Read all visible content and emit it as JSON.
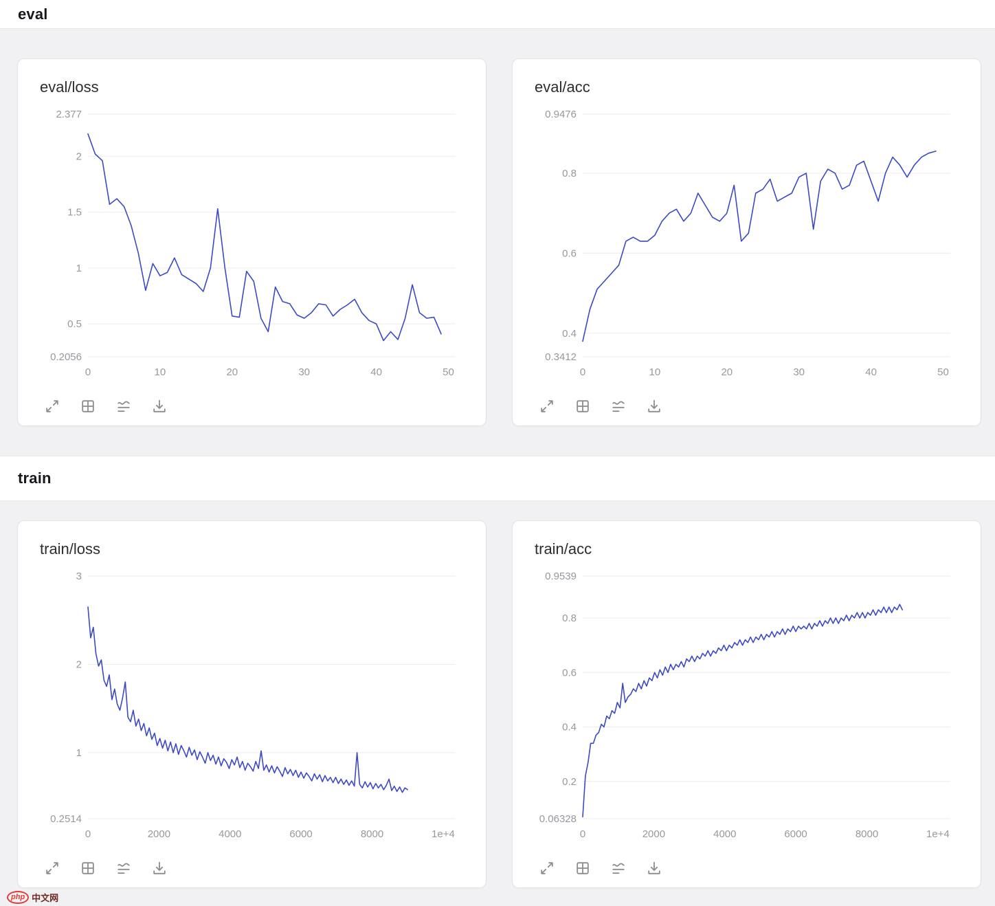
{
  "style": {
    "line_color": "#3b49c4"
  },
  "sections": [
    {
      "title": "eval"
    },
    {
      "title": "train"
    }
  ],
  "toolbar": {
    "icons": [
      "fullscreen-icon",
      "grid-icon",
      "smoothing-icon",
      "download-icon"
    ]
  },
  "watermark": {
    "logo": "php",
    "text": "中文网"
  },
  "chart_data": [
    {
      "type": "line",
      "title": "eval/loss",
      "xlim": [
        0,
        51
      ],
      "ylim": [
        0.2056,
        2.377
      ],
      "yticks": [
        {
          "v": 2.377,
          "label": "2.377"
        },
        {
          "v": 2,
          "label": "2"
        },
        {
          "v": 1.5,
          "label": "1.5"
        },
        {
          "v": 1,
          "label": "1"
        },
        {
          "v": 0.5,
          "label": "0.5"
        },
        {
          "v": 0.2056,
          "label": "0.2056"
        }
      ],
      "xticks": [
        {
          "v": 0,
          "label": "0"
        },
        {
          "v": 10,
          "label": "10"
        },
        {
          "v": 20,
          "label": "20"
        },
        {
          "v": 30,
          "label": "30"
        },
        {
          "v": 40,
          "label": "40"
        },
        {
          "v": 50,
          "label": "50"
        }
      ],
      "x": [
        0,
        1,
        2,
        3,
        4,
        5,
        6,
        7,
        8,
        9,
        10,
        11,
        12,
        13,
        14,
        15,
        16,
        17,
        18,
        19,
        20,
        21,
        22,
        23,
        24,
        25,
        26,
        27,
        28,
        29,
        30,
        31,
        32,
        33,
        34,
        35,
        36,
        37,
        38,
        39,
        40,
        41,
        42,
        43,
        44,
        45,
        46,
        47,
        48,
        49
      ],
      "y": [
        2.2,
        2.02,
        1.96,
        1.57,
        1.62,
        1.55,
        1.38,
        1.13,
        0.8,
        1.04,
        0.93,
        0.96,
        1.09,
        0.94,
        0.9,
        0.86,
        0.79,
        1.0,
        1.53,
        1.0,
        0.57,
        0.56,
        0.97,
        0.88,
        0.55,
        0.43,
        0.83,
        0.7,
        0.68,
        0.58,
        0.55,
        0.6,
        0.68,
        0.67,
        0.57,
        0.63,
        0.67,
        0.72,
        0.6,
        0.53,
        0.5,
        0.35,
        0.43,
        0.36,
        0.55,
        0.85,
        0.6,
        0.55,
        0.56,
        0.41
      ]
    },
    {
      "type": "line",
      "title": "eval/acc",
      "xlim": [
        0,
        51
      ],
      "ylim": [
        0.3412,
        0.9476
      ],
      "yticks": [
        {
          "v": 0.9476,
          "label": "0.9476"
        },
        {
          "v": 0.8,
          "label": "0.8"
        },
        {
          "v": 0.6,
          "label": "0.6"
        },
        {
          "v": 0.4,
          "label": "0.4"
        },
        {
          "v": 0.3412,
          "label": "0.3412"
        }
      ],
      "xticks": [
        {
          "v": 0,
          "label": "0"
        },
        {
          "v": 10,
          "label": "10"
        },
        {
          "v": 20,
          "label": "20"
        },
        {
          "v": 30,
          "label": "30"
        },
        {
          "v": 40,
          "label": "40"
        },
        {
          "v": 50,
          "label": "50"
        }
      ],
      "x": [
        0,
        1,
        2,
        3,
        4,
        5,
        6,
        7,
        8,
        9,
        10,
        11,
        12,
        13,
        14,
        15,
        16,
        17,
        18,
        19,
        20,
        21,
        22,
        23,
        24,
        25,
        26,
        27,
        28,
        29,
        30,
        31,
        32,
        33,
        34,
        35,
        36,
        37,
        38,
        39,
        40,
        41,
        42,
        43,
        44,
        45,
        46,
        47,
        48,
        49
      ],
      "y": [
        0.38,
        0.46,
        0.51,
        0.53,
        0.55,
        0.57,
        0.63,
        0.64,
        0.63,
        0.63,
        0.645,
        0.68,
        0.7,
        0.71,
        0.68,
        0.7,
        0.75,
        0.72,
        0.69,
        0.68,
        0.7,
        0.77,
        0.63,
        0.65,
        0.75,
        0.76,
        0.785,
        0.73,
        0.74,
        0.75,
        0.79,
        0.8,
        0.66,
        0.78,
        0.81,
        0.8,
        0.76,
        0.77,
        0.82,
        0.83,
        0.78,
        0.73,
        0.8,
        0.84,
        0.82,
        0.79,
        0.82,
        0.84,
        0.85,
        0.855
      ]
    },
    {
      "type": "line",
      "title": "train/loss",
      "xlim": [
        0,
        10350
      ],
      "ylim": [
        0.2514,
        3.0
      ],
      "yticks": [
        {
          "v": 3,
          "label": "3"
        },
        {
          "v": 2,
          "label": "2"
        },
        {
          "v": 1,
          "label": "1"
        },
        {
          "v": 0.2514,
          "label": "0.2514"
        }
      ],
      "xticks": [
        {
          "v": 0,
          "label": "0"
        },
        {
          "v": 2000,
          "label": "2000"
        },
        {
          "v": 4000,
          "label": "4000"
        },
        {
          "v": 6000,
          "label": "6000"
        },
        {
          "v": 8000,
          "label": "8000"
        },
        {
          "v": 10000,
          "label": "1e+4"
        }
      ],
      "x0": 0,
      "dx": 75,
      "y": [
        2.65,
        2.3,
        2.42,
        2.12,
        1.98,
        2.05,
        1.82,
        1.75,
        1.88,
        1.6,
        1.72,
        1.55,
        1.48,
        1.62,
        1.8,
        1.4,
        1.35,
        1.48,
        1.3,
        1.38,
        1.25,
        1.33,
        1.19,
        1.28,
        1.15,
        1.22,
        1.08,
        1.16,
        1.05,
        1.14,
        1.02,
        1.12,
        1.0,
        1.1,
        0.98,
        1.08,
        1.02,
        0.95,
        1.06,
        0.97,
        1.03,
        0.92,
        1.01,
        0.95,
        0.88,
        1.0,
        0.91,
        0.97,
        0.87,
        0.95,
        0.85,
        0.93,
        0.89,
        0.82,
        0.92,
        0.86,
        0.95,
        0.83,
        0.9,
        0.8,
        0.88,
        0.84,
        0.79,
        0.9,
        0.82,
        1.02,
        0.8,
        0.86,
        0.78,
        0.85,
        0.77,
        0.84,
        0.79,
        0.73,
        0.83,
        0.76,
        0.81,
        0.74,
        0.8,
        0.72,
        0.78,
        0.71,
        0.77,
        0.73,
        0.68,
        0.76,
        0.7,
        0.75,
        0.67,
        0.74,
        0.68,
        0.72,
        0.66,
        0.72,
        0.65,
        0.7,
        0.64,
        0.69,
        0.63,
        0.68,
        0.62,
        1.0,
        0.64,
        0.6,
        0.67,
        0.61,
        0.66,
        0.59,
        0.65,
        0.6,
        0.64,
        0.58,
        0.63,
        0.7,
        0.57,
        0.62,
        0.56,
        0.61,
        0.55,
        0.6,
        0.58
      ]
    },
    {
      "type": "line",
      "title": "train/acc",
      "xlim": [
        0,
        10350
      ],
      "ylim": [
        0.06328,
        0.9539
      ],
      "yticks": [
        {
          "v": 0.9539,
          "label": "0.9539"
        },
        {
          "v": 0.8,
          "label": "0.8"
        },
        {
          "v": 0.6,
          "label": "0.6"
        },
        {
          "v": 0.4,
          "label": "0.4"
        },
        {
          "v": 0.2,
          "label": "0.2"
        },
        {
          "v": 0.06328,
          "label": "0.06328"
        }
      ],
      "xticks": [
        {
          "v": 0,
          "label": "0"
        },
        {
          "v": 2000,
          "label": "2000"
        },
        {
          "v": 4000,
          "label": "4000"
        },
        {
          "v": 6000,
          "label": "6000"
        },
        {
          "v": 8000,
          "label": "8000"
        },
        {
          "v": 10000,
          "label": "1e+4"
        }
      ],
      "x0": 0,
      "dx": 75,
      "y": [
        0.07,
        0.22,
        0.27,
        0.34,
        0.34,
        0.37,
        0.38,
        0.41,
        0.4,
        0.44,
        0.43,
        0.46,
        0.45,
        0.49,
        0.47,
        0.56,
        0.49,
        0.51,
        0.52,
        0.54,
        0.53,
        0.56,
        0.54,
        0.57,
        0.55,
        0.58,
        0.57,
        0.6,
        0.58,
        0.61,
        0.59,
        0.62,
        0.6,
        0.63,
        0.61,
        0.63,
        0.62,
        0.64,
        0.62,
        0.65,
        0.64,
        0.66,
        0.64,
        0.66,
        0.65,
        0.67,
        0.66,
        0.68,
        0.66,
        0.68,
        0.67,
        0.69,
        0.68,
        0.7,
        0.68,
        0.7,
        0.69,
        0.71,
        0.7,
        0.72,
        0.7,
        0.72,
        0.71,
        0.73,
        0.71,
        0.73,
        0.72,
        0.74,
        0.72,
        0.74,
        0.73,
        0.75,
        0.73,
        0.75,
        0.74,
        0.76,
        0.74,
        0.76,
        0.75,
        0.77,
        0.75,
        0.77,
        0.76,
        0.77,
        0.76,
        0.78,
        0.76,
        0.78,
        0.77,
        0.79,
        0.77,
        0.79,
        0.78,
        0.8,
        0.78,
        0.8,
        0.78,
        0.8,
        0.79,
        0.81,
        0.79,
        0.81,
        0.8,
        0.82,
        0.8,
        0.82,
        0.8,
        0.82,
        0.81,
        0.83,
        0.81,
        0.83,
        0.82,
        0.84,
        0.82,
        0.84,
        0.82,
        0.84,
        0.83,
        0.85,
        0.83
      ]
    }
  ]
}
